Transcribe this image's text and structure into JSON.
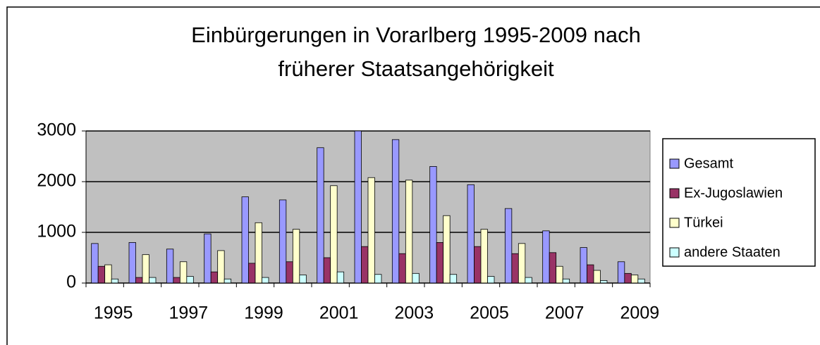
{
  "chart_data": {
    "type": "bar",
    "title": [
      "Einbürgerungen in Vorarlberg 1995-2009 nach",
      "früherer Staatsangehörigkeit"
    ],
    "categories": [
      "1995",
      null,
      "1997",
      null,
      "1999",
      null,
      "2001",
      null,
      "2003",
      null,
      "2005",
      null,
      "2007",
      null,
      "2009"
    ],
    "series": [
      {
        "name": "Gesamt",
        "color": "#9999ff",
        "values": [
          780,
          800,
          670,
          970,
          1700,
          1640,
          2670,
          3000,
          2830,
          2300,
          1940,
          1470,
          1030,
          700,
          420
        ]
      },
      {
        "name": "Ex-Jugoslawien",
        "color": "#993366",
        "values": [
          330,
          110,
          110,
          220,
          390,
          420,
          500,
          720,
          580,
          800,
          720,
          580,
          600,
          360,
          190
        ]
      },
      {
        "name": "Türkei",
        "color": "#ffffcc",
        "values": [
          360,
          560,
          420,
          640,
          1190,
          1060,
          1920,
          2080,
          2030,
          1330,
          1060,
          780,
          330,
          250,
          160
        ]
      },
      {
        "name": "andere Staaten",
        "color": "#ccffff",
        "values": [
          80,
          110,
          130,
          80,
          110,
          160,
          220,
          170,
          190,
          170,
          130,
          110,
          80,
          50,
          80
        ]
      }
    ],
    "ylim": [
      0,
      3000
    ],
    "yticks": [
      0,
      1000,
      2000,
      3000
    ],
    "grid": true,
    "legend": "right"
  }
}
